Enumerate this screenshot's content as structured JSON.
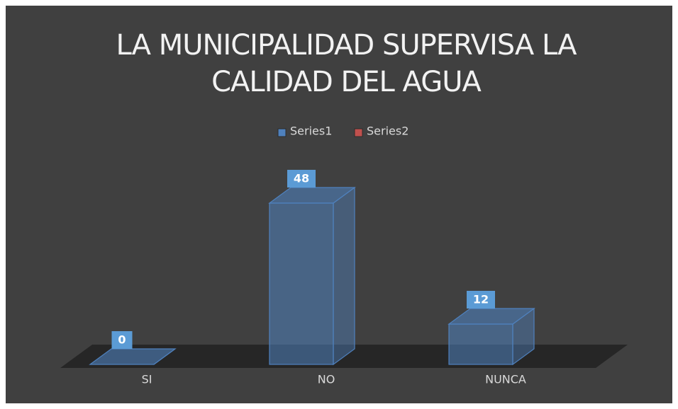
{
  "chart_data": {
    "type": "bar3d",
    "title": "LA MUNICIPALIDAD SUPERVISA LA CALIDAD  DEL AGUA",
    "categories": [
      "SI",
      "NO",
      "NUNCA"
    ],
    "series": [
      {
        "name": "Series1",
        "color": "#4f81bd",
        "values": [
          0,
          48,
          12
        ]
      },
      {
        "name": "Series2",
        "color": "#c0504d",
        "values": [
          null,
          null,
          null
        ]
      }
    ],
    "legend": "top",
    "value_label_color": "#5b9bd5"
  }
}
